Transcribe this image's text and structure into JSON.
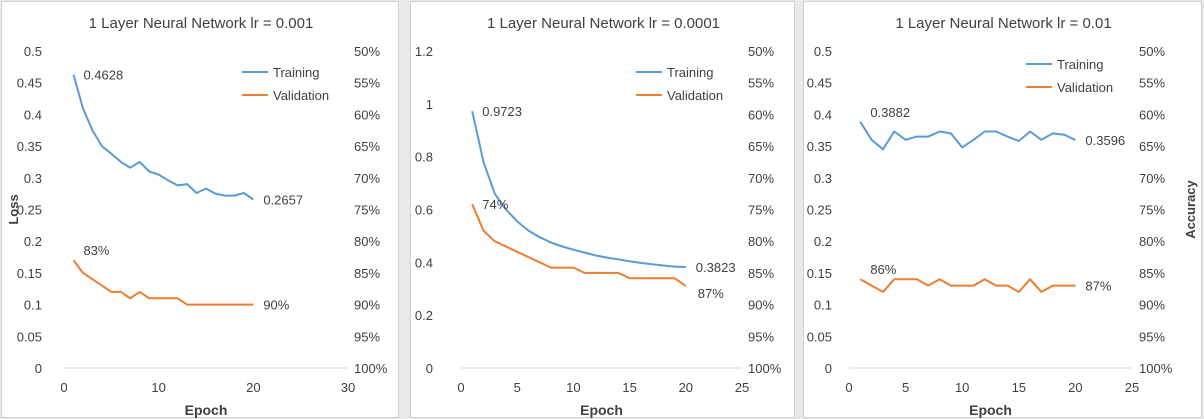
{
  "chart_data": [
    {
      "type": "line",
      "title": "1 Layer Neural Network   lr = 0.001",
      "xlabel": "Epoch",
      "ylabel": "Loss",
      "y2label": "",
      "xlim": [
        0,
        30
      ],
      "xticks": [
        0,
        10,
        20,
        30
      ],
      "ylim": [
        0,
        0.5
      ],
      "yticks": [
        0,
        0.05,
        0.1,
        0.15,
        0.2,
        0.25,
        0.3,
        0.35,
        0.4,
        0.45,
        0.5
      ],
      "ytick_labels": [
        "0",
        "0.05",
        "0.1",
        "0.15",
        "0.2",
        "0.25",
        "0.3",
        "0.35",
        "0.4",
        "0.45",
        "0.5"
      ],
      "y2_tick_labels": [
        "100%",
        "95%",
        "90%",
        "85%",
        "80%",
        "75%",
        "70%",
        "65%",
        "60%",
        "55%",
        "50%"
      ],
      "legend_position": "top-right",
      "grid": false,
      "x": [
        1,
        2,
        3,
        4,
        5,
        6,
        7,
        8,
        9,
        10,
        11,
        12,
        13,
        14,
        15,
        16,
        17,
        18,
        19,
        20
      ],
      "series": [
        {
          "name": "Training",
          "color": "#5b9bd5",
          "values": [
            0.4628,
            0.41,
            0.375,
            0.35,
            0.338,
            0.325,
            0.316,
            0.325,
            0.31,
            0.305,
            0.296,
            0.288,
            0.29,
            0.276,
            0.283,
            0.275,
            0.272,
            0.272,
            0.276,
            0.2657
          ]
        },
        {
          "name": "Validation",
          "color": "#ed7d31",
          "values": [
            0.17,
            0.15,
            0.14,
            0.13,
            0.12,
            0.12,
            0.11,
            0.12,
            0.11,
            0.11,
            0.11,
            0.11,
            0.1,
            0.1,
            0.1,
            0.1,
            0.1,
            0.1,
            0.1,
            0.1
          ]
        }
      ],
      "annotations": [
        {
          "text": "0.4628",
          "x": 1,
          "y": 0.4628,
          "pos": "right"
        },
        {
          "text": "0.2657",
          "x": 20,
          "y": 0.2657,
          "pos": "right"
        },
        {
          "text": "83%",
          "x": 1,
          "y": 0.17,
          "pos": "above-right"
        },
        {
          "text": "90%",
          "x": 20,
          "y": 0.1,
          "pos": "right"
        }
      ]
    },
    {
      "type": "line",
      "title": "1 Layer Neural Network   lr = 0.0001",
      "xlabel": "Epoch",
      "ylabel": "",
      "y2label": "",
      "xlim": [
        0,
        25
      ],
      "xticks": [
        0,
        5,
        10,
        15,
        20,
        25
      ],
      "ylim": [
        0,
        1.2
      ],
      "yticks": [
        0,
        0.2,
        0.4,
        0.6,
        0.8,
        1,
        1.2
      ],
      "ytick_labels": [
        "0",
        "0.2",
        "0.4",
        "0.6",
        "0.8",
        "1",
        "1.2"
      ],
      "y2_tick_labels": [
        "100%",
        "95%",
        "90%",
        "85%",
        "80%",
        "75%",
        "70%",
        "65%",
        "60%",
        "55%",
        "50%"
      ],
      "legend_position": "top-right",
      "grid": false,
      "x": [
        1,
        2,
        3,
        4,
        5,
        6,
        7,
        8,
        9,
        10,
        11,
        12,
        13,
        14,
        15,
        16,
        17,
        18,
        19,
        20
      ],
      "series": [
        {
          "name": "Training",
          "color": "#5b9bd5",
          "values": [
            0.9723,
            0.78,
            0.66,
            0.6,
            0.555,
            0.52,
            0.495,
            0.475,
            0.46,
            0.448,
            0.437,
            0.426,
            0.418,
            0.411,
            0.404,
            0.398,
            0.393,
            0.388,
            0.384,
            0.3823
          ]
        },
        {
          "name": "Validation",
          "color": "#ed7d31",
          "values": [
            0.62,
            0.52,
            0.48,
            0.46,
            0.44,
            0.42,
            0.4,
            0.38,
            0.38,
            0.38,
            0.36,
            0.36,
            0.36,
            0.36,
            0.34,
            0.34,
            0.34,
            0.34,
            0.34,
            0.31
          ]
        }
      ],
      "annotations": [
        {
          "text": "0.9723",
          "x": 1,
          "y": 0.9723,
          "pos": "right"
        },
        {
          "text": "0.3823",
          "x": 20,
          "y": 0.3823,
          "pos": "right"
        },
        {
          "text": "74%",
          "x": 1,
          "y": 0.62,
          "pos": "right"
        },
        {
          "text": "87%",
          "x": 20,
          "y": 0.31,
          "pos": "right-low"
        }
      ]
    },
    {
      "type": "line",
      "title": "1 Layer Neural Network   lr = 0.01",
      "xlabel": "Epoch",
      "ylabel": "",
      "y2label": "Accuracy",
      "xlim": [
        0,
        25
      ],
      "xticks": [
        0,
        5,
        10,
        15,
        20,
        25
      ],
      "ylim": [
        0,
        0.5
      ],
      "yticks": [
        0,
        0.05,
        0.1,
        0.15,
        0.2,
        0.25,
        0.3,
        0.35,
        0.4,
        0.45,
        0.5
      ],
      "ytick_labels": [
        "0",
        "0.05",
        "0.1",
        "0.15",
        "0.2",
        "0.25",
        "0.3",
        "0.35",
        "0.4",
        "0.45",
        "0.5"
      ],
      "y2_tick_labels": [
        "100%",
        "95%",
        "90%",
        "85%",
        "80%",
        "75%",
        "70%",
        "65%",
        "60%",
        "55%",
        "50%"
      ],
      "legend_position": "top-right",
      "grid": false,
      "x": [
        1,
        2,
        3,
        4,
        5,
        6,
        7,
        8,
        9,
        10,
        11,
        12,
        13,
        14,
        15,
        16,
        17,
        18,
        19,
        20
      ],
      "series": [
        {
          "name": "Training",
          "color": "#5b9bd5",
          "values": [
            0.3882,
            0.36,
            0.345,
            0.373,
            0.36,
            0.365,
            0.365,
            0.373,
            0.37,
            0.348,
            0.36,
            0.373,
            0.373,
            0.365,
            0.358,
            0.373,
            0.36,
            0.37,
            0.368,
            0.3596
          ]
        },
        {
          "name": "Validation",
          "color": "#ed7d31",
          "values": [
            0.14,
            0.13,
            0.12,
            0.14,
            0.14,
            0.14,
            0.13,
            0.14,
            0.13,
            0.13,
            0.13,
            0.14,
            0.13,
            0.13,
            0.12,
            0.14,
            0.12,
            0.13,
            0.13,
            0.13
          ]
        }
      ],
      "annotations": [
        {
          "text": "0.3882",
          "x": 1,
          "y": 0.3882,
          "pos": "above-right"
        },
        {
          "text": "0.3596",
          "x": 20,
          "y": 0.3596,
          "pos": "right"
        },
        {
          "text": "86%",
          "x": 1,
          "y": 0.14,
          "pos": "above-right"
        },
        {
          "text": "87%",
          "x": 20,
          "y": 0.13,
          "pos": "right"
        }
      ]
    }
  ]
}
